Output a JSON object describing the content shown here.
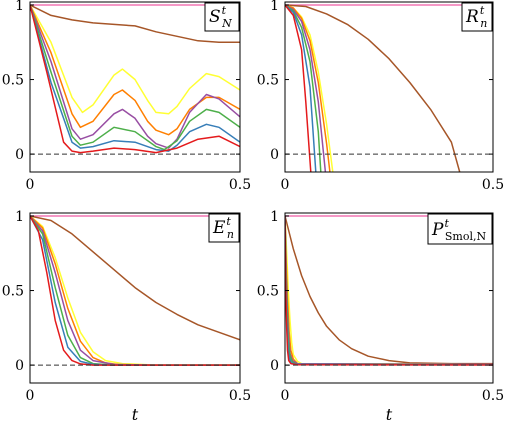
{
  "chart_data": [
    {
      "type": "line",
      "label": {
        "main": "S",
        "sup": "t",
        "sub": "N"
      },
      "xlabel": "",
      "xlim": [
        0,
        0.5
      ],
      "ylim": [
        -0.12,
        1.02
      ],
      "xticks": [
        "0",
        "0.5"
      ],
      "yticks": [
        "0",
        "0.5",
        "1"
      ],
      "xtick_values": [
        0,
        0.5
      ],
      "ytick_values": [
        0,
        0.5,
        1
      ],
      "reference_line": 0,
      "series": [
        {
          "color": "#f277b4",
          "x": [
            0,
            0.5
          ],
          "y": [
            1,
            1
          ]
        },
        {
          "color": "#a65628",
          "x": [
            0,
            0.05,
            0.1,
            0.15,
            0.2,
            0.25,
            0.3,
            0.35,
            0.4,
            0.45,
            0.5
          ],
          "y": [
            1,
            0.93,
            0.9,
            0.88,
            0.87,
            0.86,
            0.82,
            0.79,
            0.76,
            0.75,
            0.75
          ]
        },
        {
          "color": "#ffff33",
          "x": [
            0,
            0.05,
            0.1,
            0.125,
            0.15,
            0.2,
            0.22,
            0.25,
            0.28,
            0.3,
            0.33,
            0.35,
            0.38,
            0.42,
            0.45,
            0.5
          ],
          "y": [
            1,
            0.75,
            0.38,
            0.28,
            0.33,
            0.53,
            0.57,
            0.5,
            0.36,
            0.28,
            0.27,
            0.32,
            0.44,
            0.54,
            0.52,
            0.43
          ]
        },
        {
          "color": "#ff7f00",
          "x": [
            0,
            0.05,
            0.1,
            0.12,
            0.15,
            0.2,
            0.22,
            0.25,
            0.28,
            0.3,
            0.33,
            0.35,
            0.38,
            0.42,
            0.45,
            0.5
          ],
          "y": [
            1,
            0.68,
            0.27,
            0.18,
            0.22,
            0.4,
            0.43,
            0.36,
            0.22,
            0.16,
            0.13,
            0.17,
            0.3,
            0.38,
            0.38,
            0.3
          ]
        },
        {
          "color": "#984ea3",
          "x": [
            0,
            0.05,
            0.1,
            0.12,
            0.15,
            0.2,
            0.22,
            0.25,
            0.28,
            0.3,
            0.33,
            0.35,
            0.38,
            0.42,
            0.45,
            0.5
          ],
          "y": [
            1,
            0.62,
            0.17,
            0.1,
            0.13,
            0.27,
            0.3,
            0.24,
            0.12,
            0.07,
            0.04,
            0.1,
            0.28,
            0.4,
            0.37,
            0.25
          ]
        },
        {
          "color": "#4daf4a",
          "x": [
            0,
            0.05,
            0.1,
            0.12,
            0.15,
            0.2,
            0.25,
            0.3,
            0.32,
            0.35,
            0.38,
            0.42,
            0.45,
            0.5
          ],
          "y": [
            1,
            0.55,
            0.12,
            0.06,
            0.08,
            0.18,
            0.15,
            0.05,
            0.03,
            0.09,
            0.22,
            0.3,
            0.28,
            0.18
          ]
        },
        {
          "color": "#377eb8",
          "x": [
            0,
            0.05,
            0.1,
            0.12,
            0.15,
            0.2,
            0.25,
            0.3,
            0.33,
            0.35,
            0.38,
            0.42,
            0.45,
            0.5
          ],
          "y": [
            1,
            0.48,
            0.08,
            0.04,
            0.05,
            0.09,
            0.08,
            0.03,
            0.02,
            0.06,
            0.15,
            0.2,
            0.18,
            0.08
          ]
        },
        {
          "color": "#e41a1c",
          "x": [
            0,
            0.04,
            0.08,
            0.1,
            0.12,
            0.15,
            0.2,
            0.25,
            0.3,
            0.35,
            0.4,
            0.45,
            0.5
          ],
          "y": [
            1,
            0.55,
            0.08,
            0.02,
            0.01,
            0.02,
            0.04,
            0.03,
            0.01,
            0.04,
            0.1,
            0.12,
            0.05
          ]
        }
      ]
    },
    {
      "type": "line",
      "label": {
        "main": "R",
        "sup": "t",
        "sub": "n"
      },
      "xlabel": "",
      "xlim": [
        0,
        0.5
      ],
      "ylim": [
        -0.12,
        1.02
      ],
      "xticks": [
        "0",
        "0.5"
      ],
      "yticks": [
        "0",
        "0.5",
        "1"
      ],
      "xtick_values": [
        0,
        0.5
      ],
      "ytick_values": [
        0,
        0.5,
        1
      ],
      "reference_line": 0,
      "series": [
        {
          "color": "#f277b4",
          "x": [
            0,
            0.5
          ],
          "y": [
            1,
            1
          ]
        },
        {
          "color": "#a65628",
          "x": [
            0,
            0.05,
            0.1,
            0.15,
            0.2,
            0.25,
            0.3,
            0.35,
            0.4,
            0.42
          ],
          "y": [
            1,
            0.99,
            0.94,
            0.87,
            0.77,
            0.64,
            0.48,
            0.3,
            0.08,
            -0.12
          ]
        },
        {
          "color": "#ffff33",
          "x": [
            0,
            0.02,
            0.04,
            0.06,
            0.08,
            0.1,
            0.115
          ],
          "y": [
            1,
            0.98,
            0.92,
            0.8,
            0.55,
            0.2,
            -0.12
          ]
        },
        {
          "color": "#ff7f00",
          "x": [
            0,
            0.02,
            0.04,
            0.06,
            0.08,
            0.1,
            0.108
          ],
          "y": [
            1,
            0.98,
            0.91,
            0.76,
            0.48,
            0.07,
            -0.12
          ]
        },
        {
          "color": "#984ea3",
          "x": [
            0,
            0.02,
            0.04,
            0.06,
            0.08,
            0.097
          ],
          "y": [
            1,
            0.97,
            0.89,
            0.7,
            0.35,
            -0.12
          ]
        },
        {
          "color": "#4daf4a",
          "x": [
            0,
            0.02,
            0.04,
            0.06,
            0.08,
            0.086
          ],
          "y": [
            1,
            0.96,
            0.85,
            0.62,
            0.15,
            -0.12
          ]
        },
        {
          "color": "#377eb8",
          "x": [
            0,
            0.02,
            0.04,
            0.06,
            0.074
          ],
          "y": [
            1,
            0.95,
            0.8,
            0.45,
            -0.12
          ]
        },
        {
          "color": "#e41a1c",
          "x": [
            0,
            0.02,
            0.04,
            0.05,
            0.062
          ],
          "y": [
            1,
            0.93,
            0.7,
            0.35,
            -0.12
          ]
        }
      ]
    },
    {
      "type": "line",
      "label": {
        "main": "E",
        "sup": "t",
        "sub": "n"
      },
      "xlabel": "t",
      "xlim": [
        0,
        0.5
      ],
      "ylim": [
        -0.12,
        1.02
      ],
      "xticks": [
        "0",
        "0.5"
      ],
      "yticks": [
        "0",
        "0.5",
        "1"
      ],
      "xtick_values": [
        0,
        0.5
      ],
      "ytick_values": [
        0,
        0.5,
        1
      ],
      "reference_line": 0,
      "series": [
        {
          "color": "#f277b4",
          "x": [
            0,
            0.5
          ],
          "y": [
            1,
            1
          ]
        },
        {
          "color": "#a65628",
          "x": [
            0,
            0.05,
            0.1,
            0.15,
            0.2,
            0.25,
            0.3,
            0.35,
            0.4,
            0.45,
            0.5
          ],
          "y": [
            1,
            0.97,
            0.88,
            0.76,
            0.64,
            0.52,
            0.42,
            0.34,
            0.27,
            0.22,
            0.17
          ]
        },
        {
          "color": "#ffff33",
          "x": [
            0,
            0.03,
            0.06,
            0.09,
            0.12,
            0.15,
            0.18,
            0.22,
            0.3,
            0.5
          ],
          "y": [
            1,
            0.93,
            0.72,
            0.45,
            0.22,
            0.09,
            0.03,
            0.01,
            0,
            0
          ]
        },
        {
          "color": "#ff7f00",
          "x": [
            0,
            0.03,
            0.06,
            0.09,
            0.12,
            0.15,
            0.18,
            0.22,
            0.3,
            0.5
          ],
          "y": [
            1,
            0.92,
            0.68,
            0.38,
            0.16,
            0.05,
            0.015,
            0,
            0,
            0
          ]
        },
        {
          "color": "#984ea3",
          "x": [
            0,
            0.03,
            0.06,
            0.09,
            0.12,
            0.15,
            0.2,
            0.3,
            0.5
          ],
          "y": [
            1,
            0.9,
            0.62,
            0.3,
            0.1,
            0.03,
            0.005,
            0,
            0
          ]
        },
        {
          "color": "#4daf4a",
          "x": [
            0,
            0.03,
            0.06,
            0.09,
            0.12,
            0.15,
            0.2,
            0.3,
            0.5
          ],
          "y": [
            1,
            0.88,
            0.52,
            0.2,
            0.05,
            0.01,
            0,
            0,
            0
          ]
        },
        {
          "color": "#377eb8",
          "x": [
            0,
            0.03,
            0.06,
            0.09,
            0.12,
            0.15,
            0.2,
            0.5
          ],
          "y": [
            1,
            0.84,
            0.42,
            0.12,
            0.025,
            0.005,
            0,
            0
          ]
        },
        {
          "color": "#e41a1c",
          "x": [
            0,
            0.02,
            0.04,
            0.06,
            0.08,
            0.1,
            0.12,
            0.15,
            0.5
          ],
          "y": [
            1,
            0.9,
            0.62,
            0.3,
            0.1,
            0.03,
            0.008,
            0,
            0
          ]
        }
      ]
    },
    {
      "type": "line",
      "label": {
        "main": "P",
        "sup": "t",
        "sub": "Smol,N"
      },
      "xlabel": "t",
      "xlim": [
        0,
        0.5
      ],
      "ylim": [
        -0.12,
        1.02
      ],
      "xticks": [
        "0",
        "0.5"
      ],
      "yticks": [
        "0",
        "0.5",
        "1"
      ],
      "xtick_values": [
        0,
        0.5
      ],
      "ytick_values": [
        0,
        0.5,
        1
      ],
      "reference_line": 0,
      "series": [
        {
          "color": "#f277b4",
          "x": [
            0,
            0.5
          ],
          "y": [
            1,
            1
          ]
        },
        {
          "color": "#a65628",
          "x": [
            0,
            0.02,
            0.04,
            0.06,
            0.08,
            0.1,
            0.13,
            0.16,
            0.2,
            0.25,
            0.3,
            0.4,
            0.5
          ],
          "y": [
            1,
            0.78,
            0.6,
            0.46,
            0.35,
            0.26,
            0.17,
            0.11,
            0.06,
            0.03,
            0.015,
            0.01,
            0.01
          ]
        },
        {
          "color": "#ffff33",
          "x": [
            0,
            0.004,
            0.008,
            0.012,
            0.016,
            0.02,
            0.03,
            0.04,
            0.5
          ],
          "y": [
            1,
            0.75,
            0.5,
            0.3,
            0.15,
            0.07,
            0.025,
            0.01,
            0.005
          ]
        },
        {
          "color": "#ff7f00",
          "x": [
            0,
            0.003,
            0.006,
            0.01,
            0.014,
            0.02,
            0.03,
            0.5
          ],
          "y": [
            1,
            0.7,
            0.45,
            0.22,
            0.1,
            0.04,
            0.01,
            0.005
          ]
        },
        {
          "color": "#984ea3",
          "x": [
            0,
            0.003,
            0.006,
            0.009,
            0.012,
            0.018,
            0.03,
            0.5
          ],
          "y": [
            1,
            0.62,
            0.35,
            0.18,
            0.08,
            0.03,
            0.01,
            0.005
          ]
        },
        {
          "color": "#4daf4a",
          "x": [
            0,
            0.002,
            0.005,
            0.008,
            0.012,
            0.018,
            0.03,
            0.5
          ],
          "y": [
            1,
            0.7,
            0.36,
            0.16,
            0.06,
            0.02,
            0.005,
            0.003
          ]
        },
        {
          "color": "#377eb8",
          "x": [
            0,
            0.002,
            0.004,
            0.007,
            0.01,
            0.015,
            0.03,
            0.5
          ],
          "y": [
            1,
            0.6,
            0.33,
            0.13,
            0.05,
            0.015,
            0.004,
            0.002
          ]
        },
        {
          "color": "#e41a1c",
          "x": [
            0,
            0.002,
            0.004,
            0.006,
            0.009,
            0.014,
            0.03,
            0.5
          ],
          "y": [
            1,
            0.5,
            0.25,
            0.1,
            0.03,
            0.01,
            0.002,
            0.001
          ]
        }
      ]
    }
  ]
}
